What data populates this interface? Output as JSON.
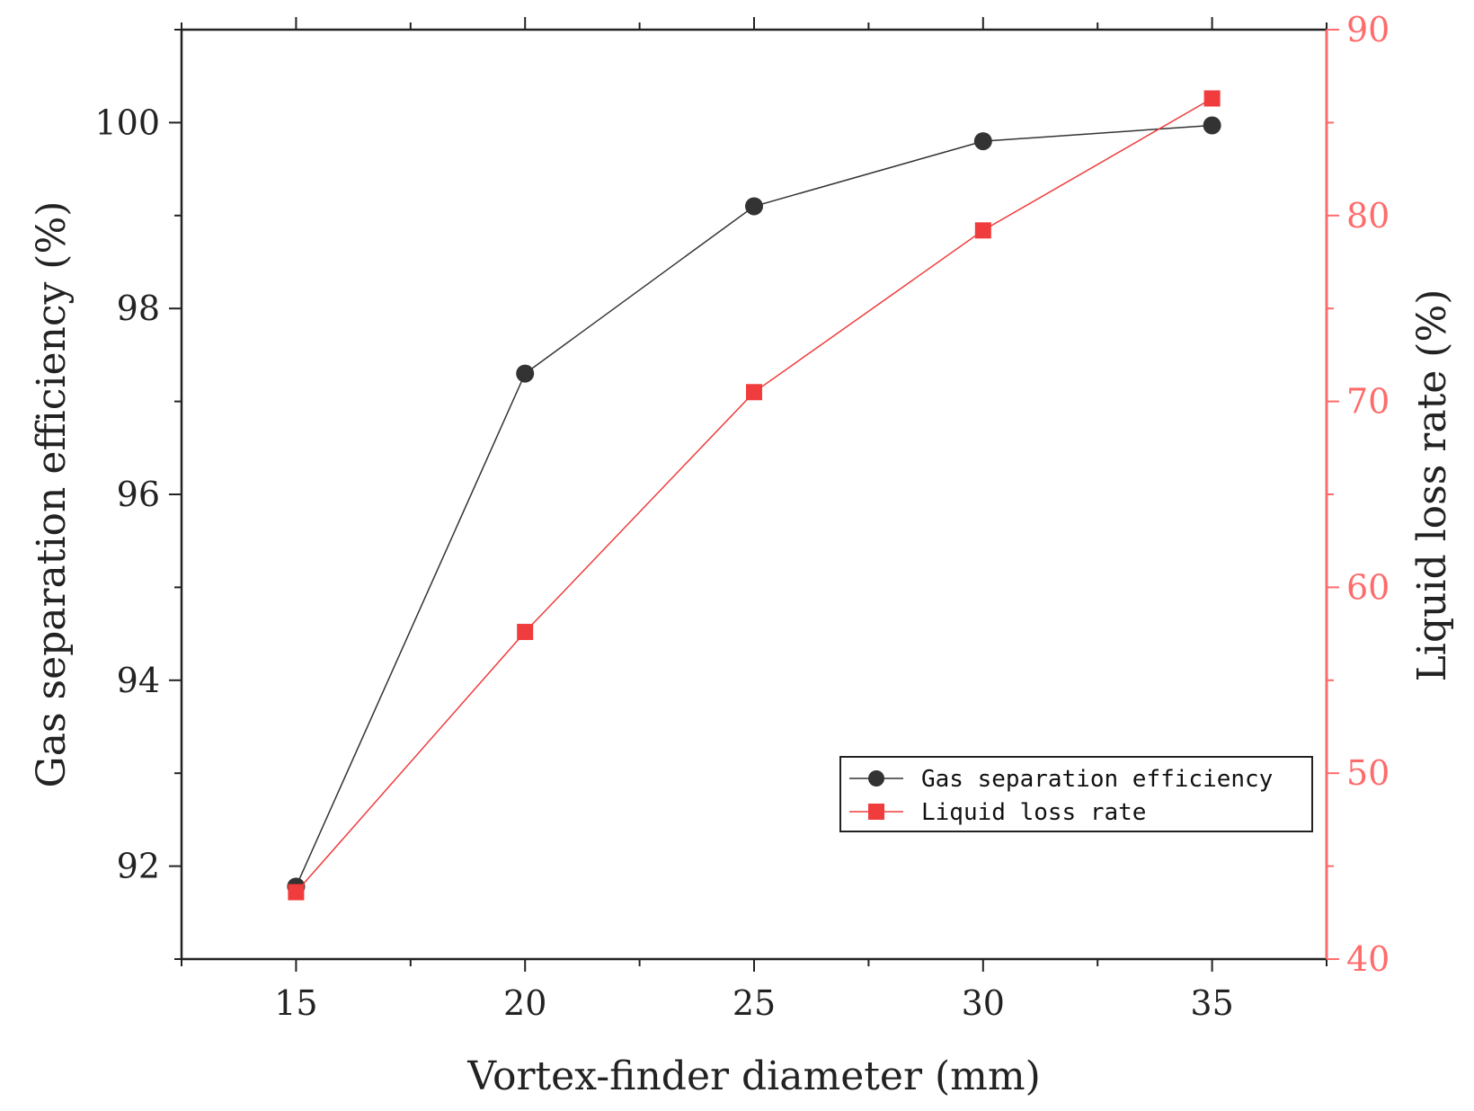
{
  "chart_data": {
    "type": "line",
    "x": [
      15,
      20,
      25,
      30,
      35
    ],
    "xlabel": "Vortex-finder diameter (mm)",
    "xlim": [
      12.5,
      37.5
    ],
    "xticks": [
      "15",
      "20",
      "25",
      "30",
      "35"
    ],
    "ylabel_left": "Gas separation efficiency (%)",
    "ylim_left": [
      91,
      101
    ],
    "yticks_left": [
      "92",
      "94",
      "96",
      "98",
      "100"
    ],
    "ylabel_right": "Liquid loss rate (%)",
    "ylim_right": [
      40,
      90
    ],
    "yticks_right": [
      "40",
      "50",
      "60",
      "70",
      "80",
      "90"
    ],
    "series": [
      {
        "name": "Gas separation efficiency",
        "axis": "left",
        "color": "#333333",
        "marker": "circle",
        "values": [
          91.78,
          97.3,
          99.1,
          99.8,
          99.97
        ]
      },
      {
        "name": "Liquid loss rate",
        "axis": "right",
        "color": "#f03c3c",
        "marker": "square",
        "values": [
          43.6,
          57.6,
          70.5,
          79.2,
          86.3
        ]
      }
    ],
    "legend": {
      "position": "bottom-right",
      "entries": [
        "Gas separation efficiency",
        "Liquid loss rate"
      ]
    },
    "grid": false
  }
}
